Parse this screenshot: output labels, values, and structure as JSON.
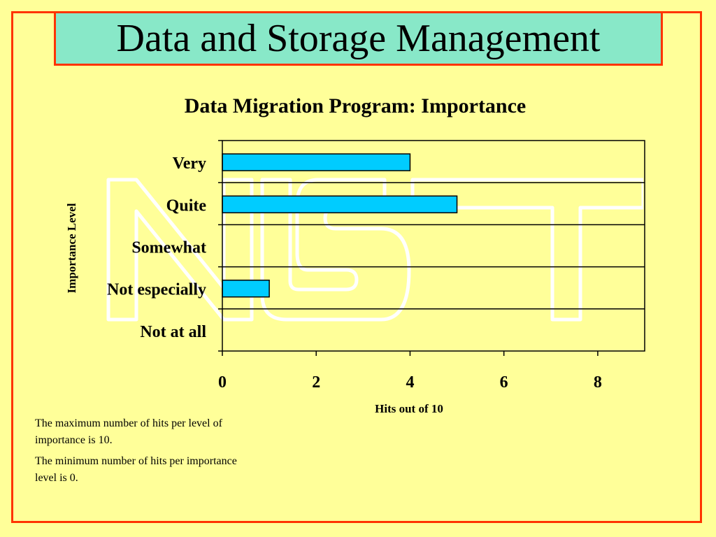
{
  "slide": {
    "title": "Data and Storage Management",
    "notes": [
      "The maximum number of hits per level of importance is 10.",
      "The minimum number of hits per importance level is 0."
    ],
    "colors": {
      "background": "#ffff99",
      "border": "#ff3300",
      "title_fill": "#88e8c8",
      "bar": "#00ccff"
    }
  },
  "chart_data": {
    "type": "bar",
    "orientation": "horizontal",
    "title": "Data Migration Program: Importance",
    "xlabel": "Hits out of 10",
    "ylabel": "Importance Level",
    "categories": [
      "Very",
      "Quite",
      "Somewhat",
      "Not especially",
      "Not at all"
    ],
    "values": [
      4,
      5,
      0,
      1,
      0
    ],
    "xlim": [
      0,
      9
    ],
    "xticks": [
      0,
      2,
      4,
      6,
      8
    ],
    "grid": "horizontal",
    "legend": "none"
  }
}
